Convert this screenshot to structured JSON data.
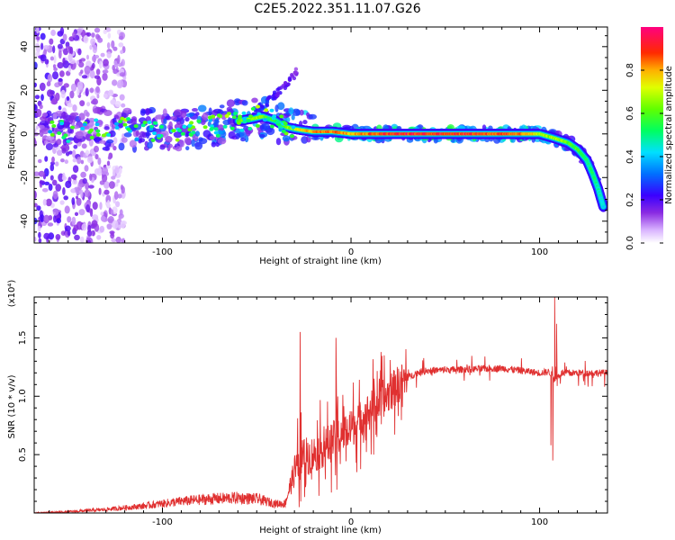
{
  "title": "C2E5.2022.351.11.07.G26",
  "chart_data": [
    {
      "type": "heatmap",
      "xlabel": "Height of straight line (km)",
      "ylabel": "Frequency (Hz)",
      "xlim": [
        -168,
        136
      ],
      "ylim": [
        -50,
        49
      ],
      "x_ticks": [
        -100,
        0,
        100
      ],
      "y_ticks": [
        -40,
        -20,
        0,
        20,
        40
      ],
      "colorbar": {
        "label": "Normalized spectral amplitude",
        "range": [
          0,
          1
        ],
        "ticks": [
          "0.0",
          "0.2",
          "0.4",
          "0.6",
          "0.8"
        ],
        "tick_values": [
          0.0,
          0.2,
          0.4,
          0.6,
          0.8
        ]
      },
      "ridge": {
        "x": [
          -165,
          -150,
          -135,
          -120,
          -110,
          -100,
          -90,
          -80,
          -70,
          -60,
          -52,
          -47,
          -40,
          -34,
          -28,
          -20,
          -10,
          0,
          20,
          40,
          60,
          80,
          95,
          100,
          108,
          115,
          120,
          125,
          128,
          131,
          134
        ],
        "y": [
          1,
          1,
          2,
          2,
          2,
          2,
          2,
          3,
          4,
          6,
          7,
          8,
          6,
          3,
          2,
          1,
          1,
          0,
          0,
          0,
          0,
          0,
          0,
          0,
          -2,
          -4,
          -7,
          -12,
          -18,
          -25,
          -34
        ],
        "amplitude": [
          0.35,
          0.4,
          0.45,
          0.45,
          0.5,
          0.5,
          0.5,
          0.55,
          0.6,
          0.65,
          0.7,
          0.65,
          0.6,
          0.65,
          0.75,
          0.85,
          0.9,
          0.85,
          0.95,
          0.95,
          0.95,
          0.9,
          0.85,
          0.7,
          0.7,
          0.65,
          0.6,
          0.55,
          0.55,
          0.5,
          0.45
        ]
      },
      "branch": {
        "x": [
          -52,
          -45,
          -40,
          -35,
          -30,
          -28
        ],
        "y": [
          10,
          14,
          18,
          22,
          27,
          30
        ],
        "amplitude": [
          0.25,
          0.25,
          0.2,
          0.2,
          0.15,
          0.12
        ]
      },
      "noise": {
        "x_range": [
          -168,
          -120
        ],
        "y_range": [
          -50,
          49
        ],
        "amplitude_range": [
          0.03,
          0.25
        ]
      }
    },
    {
      "type": "line",
      "xlabel": "Height of straight line (km)",
      "ylabel": "SNR (10 * v/v)",
      "y_multiplier": "(x10⁴)",
      "xlim": [
        -168,
        136
      ],
      "ylim": [
        0,
        1.85
      ],
      "x_ticks": [
        -100,
        0,
        100
      ],
      "y_ticks": [
        0.5,
        1.0,
        1.5
      ],
      "y_tick_labels": [
        "0.5",
        "1.0",
        "1.5"
      ],
      "color": "#e03030",
      "series": [
        {
          "x": [
            -168,
            -150,
            -130,
            -110,
            -90,
            -75,
            -60,
            -50,
            -40,
            -35,
            -30,
            -25,
            -20,
            -15,
            -10,
            -5,
            0,
            5,
            10,
            15,
            20,
            25,
            30,
            35,
            40,
            60,
            80,
            90,
            100,
            105,
            108,
            112,
            120,
            136
          ],
          "values": [
            0.0,
            0.01,
            0.03,
            0.06,
            0.1,
            0.12,
            0.13,
            0.12,
            0.08,
            0.08,
            0.35,
            0.48,
            0.5,
            0.55,
            0.62,
            0.68,
            0.72,
            0.8,
            0.88,
            0.95,
            1.02,
            1.1,
            1.16,
            1.2,
            1.22,
            1.23,
            1.24,
            1.22,
            1.2,
            1.21,
            1.15,
            1.2,
            1.2,
            1.2
          ],
          "spikes": [
            {
              "x": -27,
              "value": 1.55
            },
            {
              "x": -27.5,
              "value": 0.05
            },
            {
              "x": -8,
              "value": 1.5
            },
            {
              "x": -7.5,
              "value": 0.2
            },
            {
              "x": 12,
              "value": 0.5
            },
            {
              "x": 15,
              "value": 1.15
            },
            {
              "x": 106,
              "value": 0.58
            },
            {
              "x": 107,
              "value": 0.45
            },
            {
              "x": 108,
              "value": 1.85
            },
            {
              "x": 109,
              "value": 1.62
            }
          ]
        }
      ]
    }
  ]
}
